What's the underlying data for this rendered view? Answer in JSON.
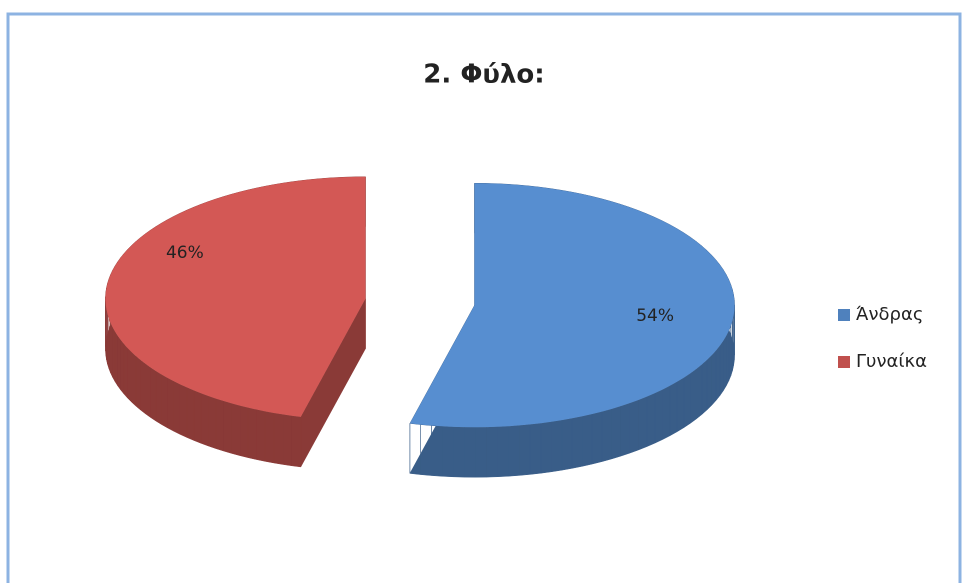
{
  "chart_data": {
    "type": "pie",
    "title": "2. Φύλο:",
    "categories": [
      "Άνδρας",
      "Γυναίκα"
    ],
    "values": [
      54,
      46
    ],
    "value_labels": [
      "54%",
      "46%"
    ],
    "colors": [
      "#4f81bd",
      "#c0504d"
    ],
    "legend": "right"
  }
}
